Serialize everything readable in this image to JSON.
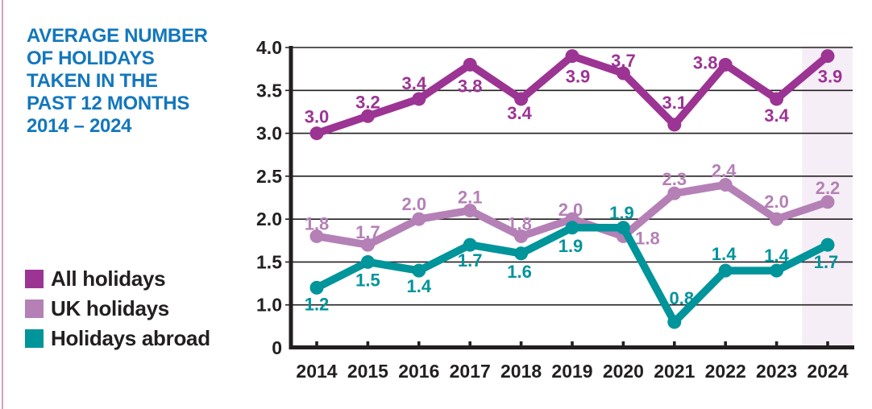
{
  "page": {
    "title_lines": [
      "AVERAGE NUMBER",
      "OF HOLIDAYS",
      "TAKEN IN THE",
      "PAST 12 MONTHS",
      "2014 – 2024"
    ],
    "title_color": "#1377bd",
    "accent_border_color": "#cfa0c6",
    "ink_color": "#231f20",
    "background_color": "#ffffff"
  },
  "legend": {
    "items": [
      {
        "label": "All holidays",
        "color": "#9c3494"
      },
      {
        "label": "UK holidays",
        "color": "#b480b6"
      },
      {
        "label": "Holidays abroad",
        "color": "#00949b"
      }
    ]
  },
  "chart_data": {
    "type": "line",
    "title": "Average number of holidays taken in the past 12 months 2014 – 2024",
    "categories": [
      2014,
      2015,
      2016,
      2017,
      2018,
      2019,
      2020,
      2021,
      2022,
      2023,
      2024
    ],
    "series": [
      {
        "name": "All holidays",
        "color": "#9c3494",
        "values": [
          3.0,
          3.2,
          3.4,
          3.8,
          3.4,
          3.9,
          3.7,
          3.1,
          3.8,
          3.4,
          3.9
        ],
        "label_offsets": [
          [
            0,
            -21
          ],
          [
            0,
            -18
          ],
          [
            -6,
            -20
          ],
          [
            0,
            26
          ],
          [
            -2,
            17
          ],
          [
            7,
            25
          ],
          [
            0,
            -16
          ],
          [
            0,
            -28
          ],
          [
            -25,
            -3
          ],
          [
            0,
            20
          ],
          [
            3,
            25
          ]
        ]
      },
      {
        "name": "UK holidays",
        "color": "#b480b6",
        "values": [
          1.8,
          1.7,
          2.0,
          2.1,
          1.8,
          2.0,
          1.8,
          2.3,
          2.4,
          2.0,
          2.2
        ],
        "label_offsets": [
          [
            0,
            -16
          ],
          [
            0,
            -16
          ],
          [
            -6,
            -19
          ],
          [
            0,
            -17
          ],
          [
            -2,
            -16
          ],
          [
            -2,
            -12
          ],
          [
            30,
            2
          ],
          [
            0,
            -18
          ],
          [
            -2,
            -18
          ],
          [
            0,
            -22
          ],
          [
            0,
            -18
          ]
        ]
      },
      {
        "name": "Holidays abroad",
        "color": "#00949b",
        "values": [
          1.2,
          1.5,
          1.4,
          1.7,
          1.6,
          1.9,
          1.9,
          0.8,
          1.4,
          1.4,
          1.7
        ],
        "label_offsets": [
          [
            0,
            20
          ],
          [
            0,
            22
          ],
          [
            0,
            19
          ],
          [
            0,
            19
          ],
          [
            -2,
            22
          ],
          [
            -2,
            22
          ],
          [
            -2,
            -19
          ],
          [
            9,
            -30
          ],
          [
            -2,
            -21
          ],
          [
            0,
            -19
          ],
          [
            -2,
            21
          ]
        ]
      }
    ],
    "draw_order": [
      1,
      2,
      0
    ],
    "y_axis": {
      "ticks": [
        {
          "label": "4.0",
          "value": 4.0
        },
        {
          "label": "3.5",
          "value": 3.5
        },
        {
          "label": "3.0",
          "value": 3.0
        },
        {
          "label": "2.5",
          "value": 2.5
        },
        {
          "label": "2.0",
          "value": 2.0
        },
        {
          "label": "1.5",
          "value": 1.5
        },
        {
          "label": "1.0",
          "value": 1.0
        },
        {
          "label": "0",
          "value": 0
        }
      ],
      "broken_axis_below": 1.0
    },
    "ylim": [
      0,
      4.0
    ],
    "grid": true,
    "legend_position": "left",
    "highlight_band": {
      "category": 2024,
      "color": "#f6eef6"
    },
    "axis_color": "#231f20"
  }
}
